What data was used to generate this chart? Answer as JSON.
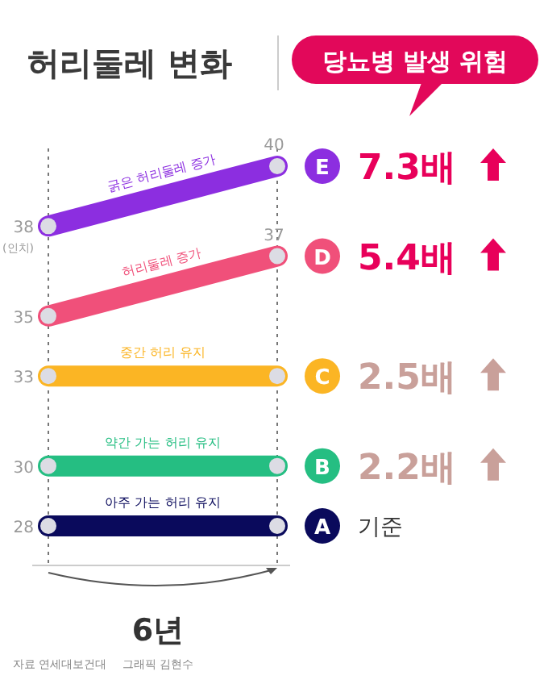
{
  "chart_data": {
    "type": "line",
    "title": "허리둘레 변화",
    "subtitle": "당뇨병 발생 위험",
    "xlabel": "6년",
    "categories": [
      null,
      null
    ],
    "marker": "circle",
    "series": [
      {
        "name": "굵은 허리둘레 증가",
        "color": "#8c2ee0",
        "values": [
          38,
          40
        ],
        "value_labels": [
          "38",
          "40"
        ]
      },
      {
        "name": "허리둘레 증가",
        "color": "#f0507a",
        "values": [
          35,
          37
        ],
        "value_labels": [
          "35",
          "37"
        ]
      },
      {
        "name": "중간 허리 유지",
        "color": "#fbb524",
        "values": [
          33,
          33
        ],
        "value_labels": [
          "33",
          null
        ]
      },
      {
        "name": "약간 가는 허리 유지",
        "color": "#25be82",
        "values": [
          30,
          30
        ],
        "value_labels": [
          "30",
          null
        ]
      },
      {
        "name": "아주 가는 허리 유지",
        "color": "#0a0a5c",
        "values": [
          28,
          28
        ],
        "value_labels": [
          "28",
          null
        ]
      }
    ],
    "annotations": [
      "E",
      "7.3배",
      "D",
      "5.4배",
      "C",
      "2.5배",
      "B",
      "2.2배",
      "A",
      "기준",
      "(인치)",
      "자료 연세대보건대",
      "그래픽 김현수"
    ]
  }
}
